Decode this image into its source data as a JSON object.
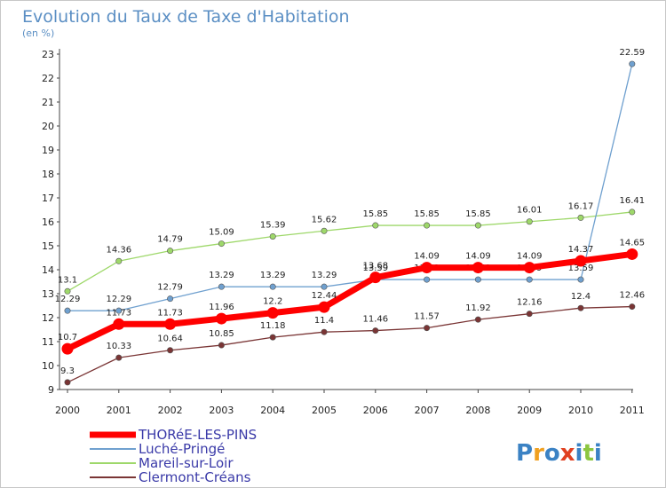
{
  "chart_data": {
    "type": "line",
    "title": "Evolution du Taux de Taxe d'Habitation",
    "subtitle": "(en %)",
    "x": [
      "2000",
      "2001",
      "2002",
      "2003",
      "2004",
      "2005",
      "2006",
      "2007",
      "2008",
      "2009",
      "2010",
      "2011"
    ],
    "yticks": [
      "9",
      "10",
      "11",
      "12",
      "13",
      "14",
      "15",
      "16",
      "17",
      "18",
      "19",
      "20",
      "21",
      "22",
      "23"
    ],
    "ylim": [
      9,
      23
    ],
    "grid": false,
    "legend": "bottom-left",
    "series": [
      {
        "name": "THORéE-LES-PINS",
        "color": "#ff0000",
        "values": [
          10.7,
          11.73,
          11.73,
          11.96,
          12.2,
          12.44,
          13.68,
          14.09,
          14.09,
          14.09,
          14.37,
          14.65
        ],
        "labels": [
          "10.7",
          "11.73",
          "11.73",
          "11.96",
          "12.2",
          "12.44",
          "13.68",
          "14.09",
          "14.09",
          "14.09",
          "14.37",
          "14.65"
        ]
      },
      {
        "name": "Luché-Pringé",
        "color": "#6fa0cf",
        "values": [
          12.29,
          12.29,
          12.79,
          13.29,
          13.29,
          13.29,
          13.59,
          13.59,
          13.59,
          13.59,
          13.59,
          22.59
        ],
        "labels": [
          "12.29",
          "12.29",
          "12.79",
          "13.29",
          "13.29",
          "13.29",
          "13.59",
          "13.59",
          "13.59",
          "13.59",
          "13.59",
          "22.59"
        ]
      },
      {
        "name": "Mareil-sur-Loir",
        "color": "#9ed86a",
        "values": [
          13.1,
          14.36,
          14.79,
          15.09,
          15.39,
          15.62,
          15.85,
          15.85,
          15.85,
          16.01,
          16.17,
          16.41
        ],
        "labels": [
          "13.1",
          "14.36",
          "14.79",
          "15.09",
          "15.39",
          "15.62",
          "15.85",
          "15.85",
          "15.85",
          "16.01",
          "16.17",
          "16.41"
        ]
      },
      {
        "name": "Clermont-Créans",
        "color": "#7a3535",
        "values": [
          9.3,
          10.33,
          10.64,
          10.85,
          11.18,
          11.4,
          11.46,
          11.57,
          11.92,
          12.16,
          12.4,
          12.46
        ],
        "labels": [
          "9.3",
          "10.33",
          "10.64",
          "10.85",
          "11.18",
          "11.4",
          "11.46",
          "11.57",
          "11.92",
          "12.16",
          "12.4",
          "12.46"
        ]
      }
    ]
  },
  "logo": {
    "text": "Proxiti"
  }
}
